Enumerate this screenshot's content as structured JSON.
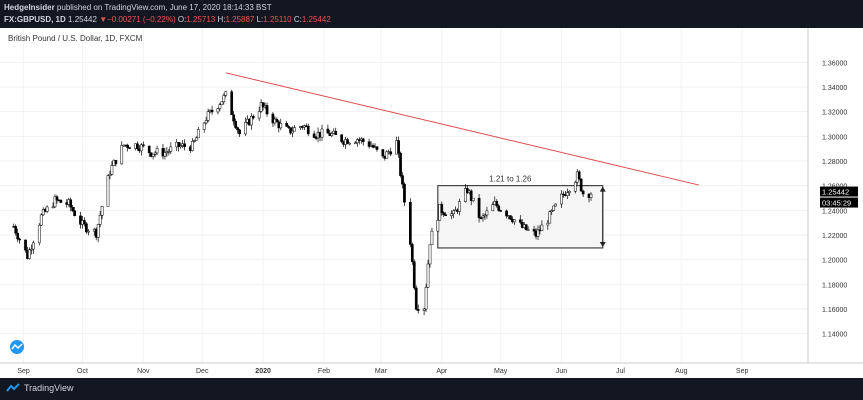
{
  "header": {
    "publisher": "HedgeInsider",
    "published_text": "published on TradingView.com, June 17, 2020 18:14:33 BST",
    "symbol": "FX:GBPUSD, 1D",
    "last": "1.25442",
    "change_arrow": "▼",
    "change": "−0.00271 (−0.22%)",
    "o_label": "O:",
    "o": "1.25713",
    "h_label": "H:",
    "h": "1.25887",
    "l_label": "L:",
    "l": "1.25110",
    "c_label": "C:",
    "c": "1.25442"
  },
  "footer": {
    "brand": "TradingView",
    "logo_icon": "tradingview-logo-icon"
  },
  "colors": {
    "up": "#ffffff",
    "down": "#000000",
    "wick": "#000000",
    "trendline": "#e04b4b",
    "price_tag": "#000000",
    "negative": "#ef5350",
    "dark_bg": "#131722"
  },
  "chart_data": {
    "type": "candlestick",
    "title": "British Pound / U.S. Dollar, 1D, FXCM",
    "ylim": [
      1.13,
      1.37
    ],
    "y_ticks": [
      "1.36000",
      "1.34000",
      "1.32000",
      "1.30000",
      "1.28000",
      "1.26000",
      "1.24000",
      "1.22000",
      "1.20000",
      "1.18000",
      "1.16000",
      "1.14000"
    ],
    "x_ticks": [
      "Sep",
      "Oct",
      "Nov",
      "Dec",
      "2020",
      "Feb",
      "Mar",
      "Apr",
      "May",
      "Jun",
      "Jul",
      "Aug",
      "Sep"
    ],
    "last_price_label": "1.25442",
    "countdown_label": "03:45:29",
    "annotations": [
      {
        "type": "trendline",
        "from": {
          "date": "2019-12-13",
          "price": 1.3515
        },
        "to": {
          "date": "2020-08-10",
          "price": 1.2605
        }
      },
      {
        "type": "range_box",
        "from_date": "2020-03-30",
        "to_date": "2020-06-22",
        "low": 1.2095,
        "high": 1.26,
        "label": "1.21 to 1.26"
      }
    ],
    "series": [
      {
        "date": "2019-08-27",
        "close": 1.227
      },
      {
        "date": "2019-09-03",
        "close": 1.203
      },
      {
        "date": "2019-09-10",
        "close": 1.235
      },
      {
        "date": "2019-09-17",
        "close": 1.248
      },
      {
        "date": "2019-09-24",
        "close": 1.245
      },
      {
        "date": "2019-10-01",
        "close": 1.228
      },
      {
        "date": "2019-10-08",
        "close": 1.222
      },
      {
        "date": "2019-10-15",
        "close": 1.272
      },
      {
        "date": "2019-10-22",
        "close": 1.293
      },
      {
        "date": "2019-10-29",
        "close": 1.293
      },
      {
        "date": "2019-11-05",
        "close": 1.287
      },
      {
        "date": "2019-11-12",
        "close": 1.287
      },
      {
        "date": "2019-11-19",
        "close": 1.292
      },
      {
        "date": "2019-11-26",
        "close": 1.292
      },
      {
        "date": "2019-12-03",
        "close": 1.315
      },
      {
        "date": "2019-12-13",
        "close": 1.333
      },
      {
        "date": "2019-12-20",
        "close": 1.302
      },
      {
        "date": "2019-12-31",
        "close": 1.325
      },
      {
        "date": "2020-01-07",
        "close": 1.312
      },
      {
        "date": "2020-01-14",
        "close": 1.304
      },
      {
        "date": "2020-01-21",
        "close": 1.309
      },
      {
        "date": "2020-01-28",
        "close": 1.302
      },
      {
        "date": "2020-02-04",
        "close": 1.302
      },
      {
        "date": "2020-02-11",
        "close": 1.297
      },
      {
        "date": "2020-02-18",
        "close": 1.298
      },
      {
        "date": "2020-02-25",
        "close": 1.293
      },
      {
        "date": "2020-03-02",
        "close": 1.282
      },
      {
        "date": "2020-03-09",
        "close": 1.295
      },
      {
        "date": "2020-03-12",
        "close": 1.258
      },
      {
        "date": "2020-03-16",
        "close": 1.215
      },
      {
        "date": "2020-03-19",
        "close": 1.163
      },
      {
        "date": "2020-03-23",
        "close": 1.162
      },
      {
        "date": "2020-03-26",
        "close": 1.215
      },
      {
        "date": "2020-03-31",
        "close": 1.241
      },
      {
        "date": "2020-04-07",
        "close": 1.236
      },
      {
        "date": "2020-04-14",
        "close": 1.257
      },
      {
        "date": "2020-04-21",
        "close": 1.232
      },
      {
        "date": "2020-04-28",
        "close": 1.245
      },
      {
        "date": "2020-05-05",
        "close": 1.237
      },
      {
        "date": "2020-05-12",
        "close": 1.226
      },
      {
        "date": "2020-05-19",
        "close": 1.22
      },
      {
        "date": "2020-05-26",
        "close": 1.235
      },
      {
        "date": "2020-06-02",
        "close": 1.253
      },
      {
        "date": "2020-06-09",
        "close": 1.268
      },
      {
        "date": "2020-06-12",
        "close": 1.254
      },
      {
        "date": "2020-06-17",
        "close": 1.2544
      }
    ]
  }
}
